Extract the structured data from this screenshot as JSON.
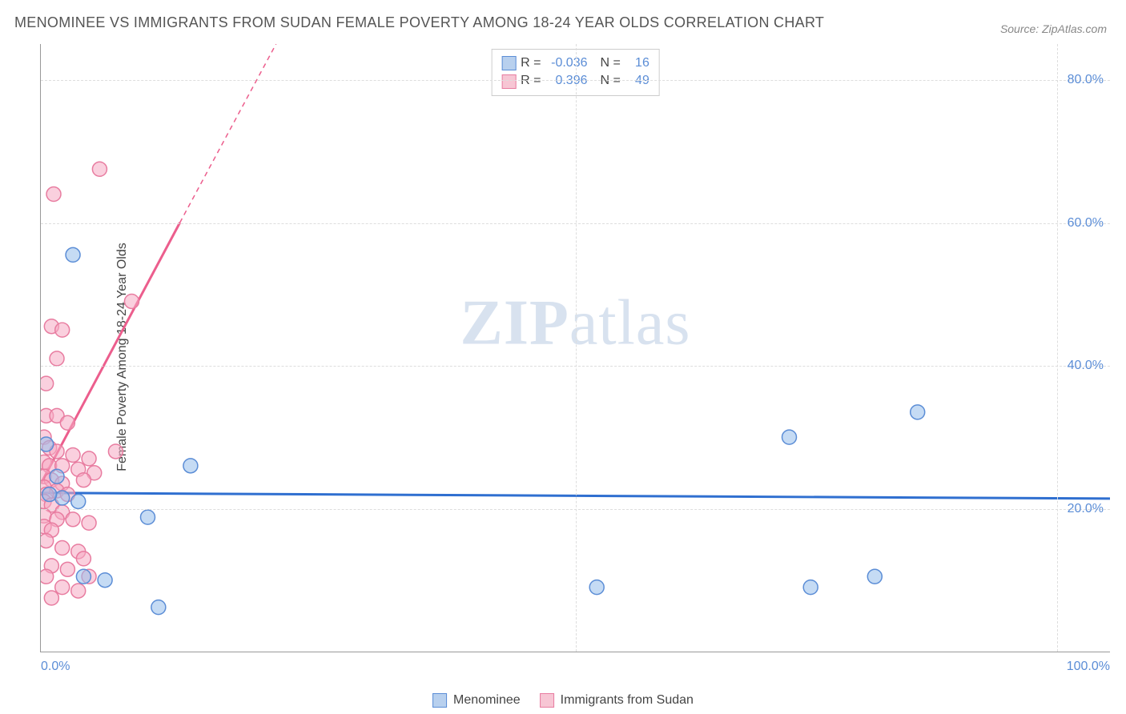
{
  "title": "MENOMINEE VS IMMIGRANTS FROM SUDAN FEMALE POVERTY AMONG 18-24 YEAR OLDS CORRELATION CHART",
  "source": "Source: ZipAtlas.com",
  "y_axis_label": "Female Poverty Among 18-24 Year Olds",
  "watermark_a": "ZIP",
  "watermark_b": "atlas",
  "chart": {
    "type": "scatter",
    "xlim": [
      0,
      100
    ],
    "ylim": [
      0,
      85
    ],
    "y_ticks": [
      20,
      40,
      60,
      80
    ],
    "y_tick_labels": [
      "20.0%",
      "40.0%",
      "60.0%",
      "80.0%"
    ],
    "x_ticks_minor": [
      50
    ],
    "x_tick_labels": [
      "0.0%",
      "100.0%"
    ],
    "grid_color": "#dddddd",
    "axis_color": "#999999",
    "background": "#ffffff",
    "marker_radius": 9,
    "series": [
      {
        "name": "Menominee",
        "color_fill": "#b8d0ee",
        "color_stroke": "#5b8dd6",
        "R": "-0.036",
        "N": "16",
        "trend": {
          "y_intercept": 22.2,
          "y_at_100": 21.4,
          "color": "#2f6fd0"
        },
        "points": [
          [
            3.0,
            55.5
          ],
          [
            2.0,
            21.5
          ],
          [
            3.5,
            21.0
          ],
          [
            10.0,
            18.8
          ],
          [
            14.0,
            26.0
          ],
          [
            6.0,
            10.0
          ],
          [
            11.0,
            6.2
          ],
          [
            52.0,
            9.0
          ],
          [
            72.0,
            9.0
          ],
          [
            78.0,
            10.5
          ],
          [
            70.0,
            30.0
          ],
          [
            82.0,
            33.5
          ],
          [
            1.5,
            24.5
          ],
          [
            0.8,
            22.0
          ],
          [
            4.0,
            10.5
          ],
          [
            0.5,
            29.0
          ]
        ]
      },
      {
        "name": "Immigrants from Sudan",
        "color_fill": "#f7c6d4",
        "color_stroke": "#e87ca0",
        "R": "0.396",
        "N": "49",
        "trend": {
          "y_intercept": 23.5,
          "slope_visual_end_x": 22,
          "slope_visual_end_y": 85,
          "color": "#ec5e8d"
        },
        "points": [
          [
            1.2,
            64.0
          ],
          [
            5.5,
            67.5
          ],
          [
            1.0,
            45.5
          ],
          [
            2.0,
            45.0
          ],
          [
            1.5,
            41.0
          ],
          [
            8.5,
            49.0
          ],
          [
            0.5,
            37.5
          ],
          [
            0.5,
            33.0
          ],
          [
            1.5,
            33.0
          ],
          [
            2.5,
            32.0
          ],
          [
            0.3,
            30.0
          ],
          [
            0.8,
            28.5
          ],
          [
            1.5,
            28.0
          ],
          [
            3.0,
            27.5
          ],
          [
            4.5,
            27.0
          ],
          [
            7.0,
            28.0
          ],
          [
            0.3,
            26.5
          ],
          [
            0.8,
            26.0
          ],
          [
            2.0,
            26.0
          ],
          [
            3.5,
            25.5
          ],
          [
            5.0,
            25.0
          ],
          [
            4.0,
            24.0
          ],
          [
            0.3,
            24.5
          ],
          [
            1.0,
            24.0
          ],
          [
            2.0,
            23.5
          ],
          [
            0.3,
            23.0
          ],
          [
            1.5,
            22.5
          ],
          [
            0.5,
            22.0
          ],
          [
            2.5,
            22.0
          ],
          [
            0.3,
            21.0
          ],
          [
            1.0,
            20.5
          ],
          [
            2.0,
            19.5
          ],
          [
            0.3,
            19.0
          ],
          [
            1.5,
            18.5
          ],
          [
            3.0,
            18.5
          ],
          [
            4.5,
            18.0
          ],
          [
            0.3,
            17.5
          ],
          [
            1.0,
            17.0
          ],
          [
            0.5,
            15.5
          ],
          [
            2.0,
            14.5
          ],
          [
            3.5,
            14.0
          ],
          [
            1.0,
            12.0
          ],
          [
            2.5,
            11.5
          ],
          [
            4.0,
            13.0
          ],
          [
            0.5,
            10.5
          ],
          [
            2.0,
            9.0
          ],
          [
            3.5,
            8.5
          ],
          [
            1.0,
            7.5
          ],
          [
            4.5,
            10.5
          ]
        ]
      }
    ]
  },
  "stats_legend": {
    "rows": [
      {
        "swatch": "blue",
        "r_label": "R =",
        "r_val": "-0.036",
        "n_label": "N =",
        "n_val": "16"
      },
      {
        "swatch": "pink",
        "r_label": "R =",
        "r_val": "0.396",
        "n_label": "N =",
        "n_val": "49"
      }
    ]
  },
  "bottom_legend": [
    {
      "swatch": "blue",
      "label": "Menominee"
    },
    {
      "swatch": "pink",
      "label": "Immigrants from Sudan"
    }
  ]
}
